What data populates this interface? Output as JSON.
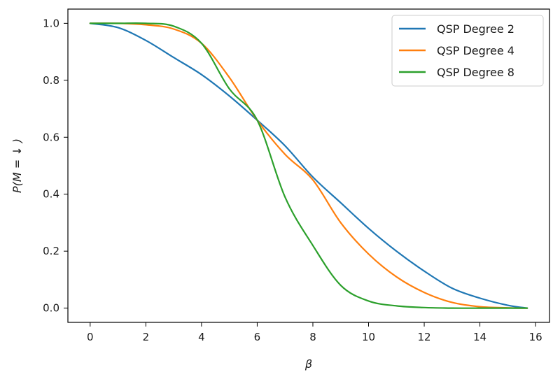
{
  "chart_data": {
    "type": "line",
    "xlabel": "β",
    "ylabel": "P(M = ↓ )",
    "xlim": [
      -0.8,
      16.5
    ],
    "ylim": [
      -0.05,
      1.05
    ],
    "xticks": [
      0,
      2,
      4,
      6,
      8,
      10,
      12,
      14,
      16
    ],
    "yticks": [
      0.0,
      0.2,
      0.4,
      0.6,
      0.8,
      1.0
    ],
    "xtick_labels": [
      "0",
      "2",
      "4",
      "6",
      "8",
      "10",
      "12",
      "14",
      "16"
    ],
    "ytick_labels": [
      "0.0",
      "0.2",
      "0.4",
      "0.6",
      "0.8",
      "1.0"
    ],
    "grid": false,
    "legend": "top-right",
    "x": [
      0,
      1,
      2,
      3,
      4,
      5,
      6,
      7,
      8,
      9,
      10,
      11,
      12,
      13,
      14,
      15,
      15.7
    ],
    "series": [
      {
        "name": "QSP Degree 2",
        "color": "#1f77b4",
        "values": [
          1.0,
          0.985,
          0.94,
          0.88,
          0.82,
          0.745,
          0.66,
          0.57,
          0.46,
          0.37,
          0.28,
          0.2,
          0.13,
          0.07,
          0.035,
          0.01,
          0.0
        ]
      },
      {
        "name": "QSP Degree 4",
        "color": "#ff7f0e",
        "values": [
          1.0,
          1.0,
          0.995,
          0.98,
          0.93,
          0.81,
          0.66,
          0.54,
          0.45,
          0.3,
          0.19,
          0.11,
          0.055,
          0.02,
          0.005,
          0.001,
          0.0
        ]
      },
      {
        "name": "QSP Degree 8",
        "color": "#2ca02c",
        "values": [
          1.0,
          1.0,
          1.0,
          0.99,
          0.93,
          0.77,
          0.66,
          0.39,
          0.22,
          0.08,
          0.025,
          0.008,
          0.002,
          0.0,
          0.0,
          0.0,
          0.0
        ]
      }
    ]
  }
}
